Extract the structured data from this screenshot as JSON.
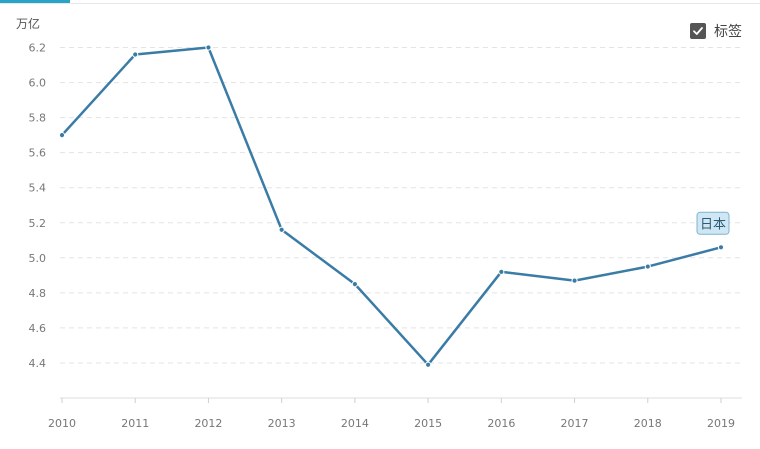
{
  "toggle": {
    "label": "标签",
    "checked": true
  },
  "chart_data": {
    "type": "line",
    "ylabel": "万亿",
    "x": [
      "2010",
      "2011",
      "2012",
      "2013",
      "2014",
      "2015",
      "2016",
      "2017",
      "2018",
      "2019"
    ],
    "series": [
      {
        "name": "日本",
        "values": [
          5.7,
          6.16,
          6.2,
          5.16,
          4.85,
          4.39,
          4.92,
          4.87,
          4.95,
          5.06
        ],
        "color": "#3a7ca5"
      }
    ],
    "ylim": [
      4.2,
      6.3
    ],
    "yticks": [
      "4.4",
      "4.6",
      "4.8",
      "5.0",
      "5.2",
      "5.4",
      "5.6",
      "5.8",
      "6.0",
      "6.2"
    ],
    "grid": true,
    "series_label_on_last_point": true
  }
}
